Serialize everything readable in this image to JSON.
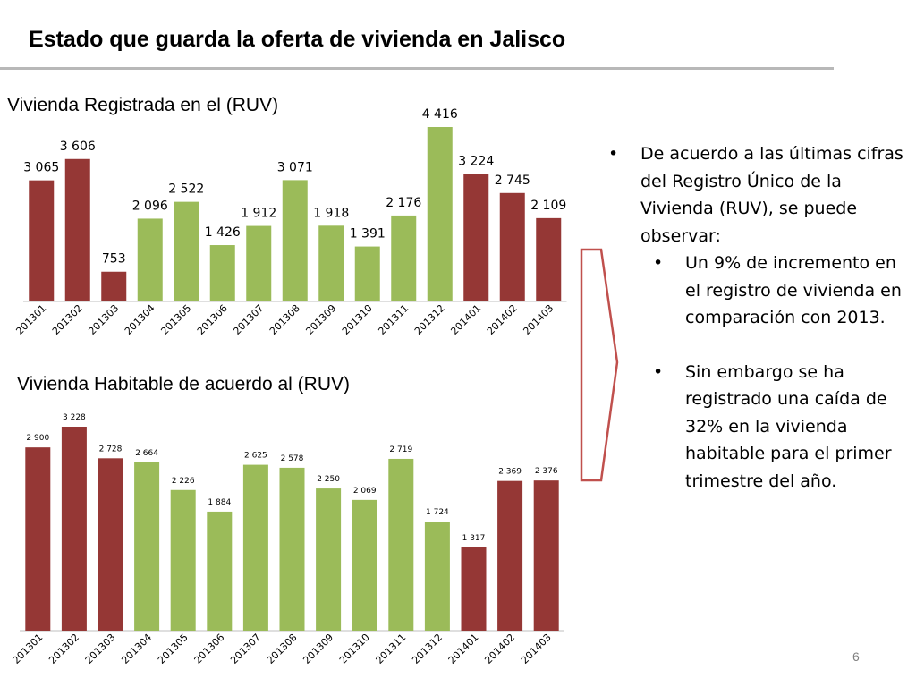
{
  "title": "Estado que guarda la oferta de vivienda en Jalisco",
  "page_number": "6",
  "colors": {
    "red": "#953735",
    "green": "#9bbb59",
    "arrow": "#c0504d"
  },
  "bullets": {
    "intro": "De acuerdo a las últimas cifras del Registro Único de la Vivienda (RUV), se puede observar:",
    "point1": "Un 9% de incremento en el  registro de vivienda  en comparación con 2013.",
    "point2": "Sin embargo se ha registrado una caída de 32% en la vivienda habitable para el primer trimestre del año."
  },
  "chart_data": [
    {
      "type": "bar",
      "title": "Vivienda Registrada en el (RUV)",
      "categories": [
        "201301",
        "201302",
        "201303",
        "201304",
        "201305",
        "201306",
        "201307",
        "201308",
        "201309",
        "201310",
        "201311",
        "201312",
        "201401",
        "201402",
        "201403"
      ],
      "values": [
        3065,
        3606,
        753,
        2096,
        2522,
        1426,
        1912,
        3071,
        1918,
        1391,
        2176,
        4416,
        3224,
        2745,
        2109
      ],
      "labels": [
        "3 065",
        "3 606",
        "753",
        "2 096",
        "2 522",
        "1 426",
        "1 912",
        "3 071",
        "1 918",
        "1 391",
        "2 176",
        "4 416",
        "3 224",
        "2 745",
        "2 109"
      ],
      "bar_colors": [
        "red",
        "red",
        "red",
        "green",
        "green",
        "green",
        "green",
        "green",
        "green",
        "green",
        "green",
        "green",
        "red",
        "red",
        "red"
      ],
      "ylim": [
        0,
        4416
      ]
    },
    {
      "type": "bar",
      "title": "Vivienda Habitable de acuerdo al (RUV)",
      "categories": [
        "201301",
        "201302",
        "201303",
        "201304",
        "201305",
        "201306",
        "201307",
        "201308",
        "201309",
        "201310",
        "201311",
        "201312",
        "201401",
        "201402",
        "201403"
      ],
      "values": [
        2900,
        3228,
        2728,
        2664,
        2226,
        1884,
        2625,
        2578,
        2250,
        2069,
        2719,
        1724,
        1317,
        2369,
        2376
      ],
      "labels": [
        "2 900",
        "3 228",
        "2 728",
        "2 664",
        "2 226",
        "1 884",
        "2 625",
        "2 578",
        "2 250",
        "2 069",
        "2 719",
        "1 724",
        "1 317",
        "2 369",
        "2 376"
      ],
      "bar_colors": [
        "red",
        "red",
        "red",
        "green",
        "green",
        "green",
        "green",
        "green",
        "green",
        "green",
        "green",
        "green",
        "red",
        "red",
        "red"
      ],
      "ylim": [
        0,
        3228
      ]
    }
  ]
}
